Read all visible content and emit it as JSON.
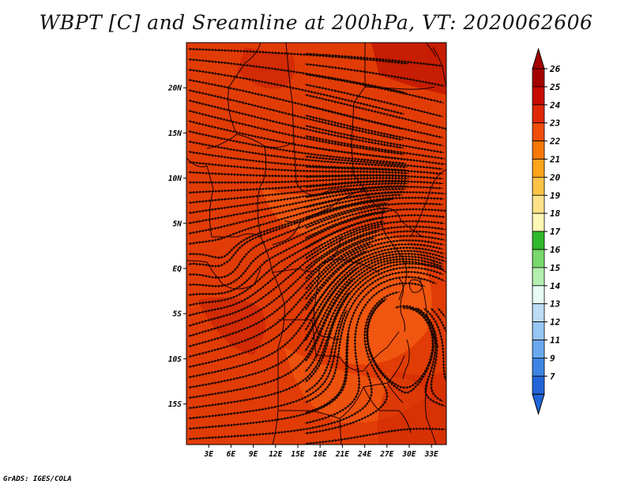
{
  "title": "WBPT [C] and Sreamline at 200hPa, VT: 2020062606",
  "credit": "GrADS: IGES/COLA",
  "map": {
    "lon_ticks": [
      "3E",
      "6E",
      "9E",
      "12E",
      "15E",
      "18E",
      "21E",
      "24E",
      "27E",
      "30E",
      "33E"
    ],
    "lat_ticks": [
      "20N",
      "15N",
      "10N",
      "5N",
      "EQ",
      "5S",
      "10S",
      "15S"
    ],
    "lon_range": [
      0,
      35
    ],
    "lat_range": [
      -19.5,
      25
    ],
    "background_color": "#e23c06"
  },
  "colorbar": {
    "labels": [
      "26",
      "25",
      "24",
      "23",
      "22",
      "21",
      "20",
      "19",
      "18",
      "17",
      "16",
      "15",
      "14",
      "13",
      "12",
      "11",
      "9",
      "7"
    ],
    "colors": [
      "#a50000",
      "#c80a00",
      "#e02806",
      "#f04e0a",
      "#f87808",
      "#fca41c",
      "#fdc347",
      "#fde28a",
      "#fff7b5",
      "#2fb92c",
      "#78d86c",
      "#b4eeb0",
      "#e8fcf4",
      "#bfdcf6",
      "#96c6f3",
      "#6aa8ee",
      "#3f86e4",
      "#2265d8"
    ],
    "top_arrow_color": "#a50000",
    "bottom_arrow_color": "#2265d8"
  }
}
